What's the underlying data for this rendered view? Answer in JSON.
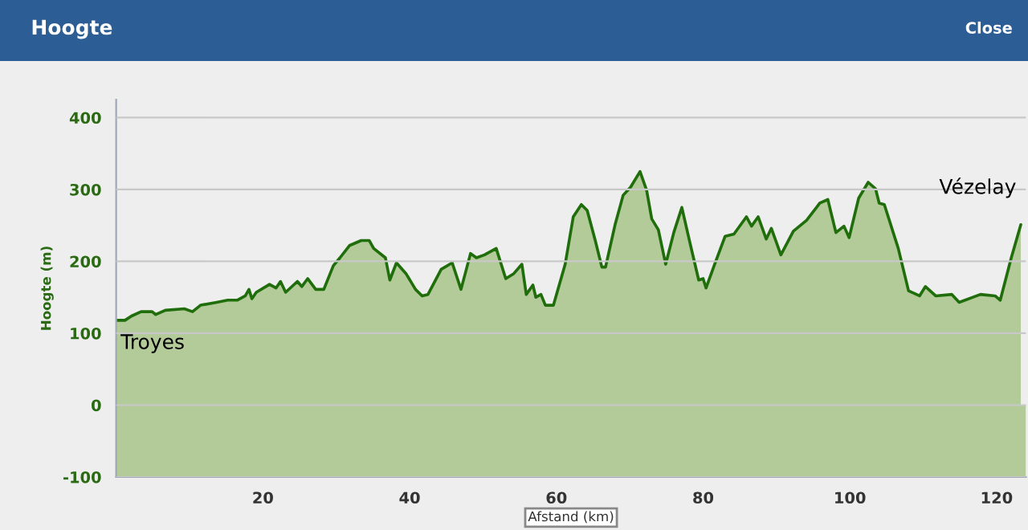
{
  "chart_data": {
    "type": "area",
    "title": "Hoogte",
    "xlabel": "Afstand (km)",
    "ylabel": "Hoogte (m)",
    "annotations": [
      "Close",
      {
        "text": "Troyes",
        "x": 0,
        "y": 118
      },
      {
        "text": "Vézelay",
        "x": 123.3,
        "y": 251
      }
    ],
    "xlim": [
      0,
      124
    ],
    "xticks": [
      {
        "value": 0,
        "label": null
      },
      20,
      40,
      60,
      80,
      100,
      120
    ],
    "bands": [
      {
        "axis": "y",
        "from": -100,
        "to": 0,
        "color": "#b3cb98"
      }
    ],
    "ylim": [
      -100,
      425
    ],
    "yticks": [
      -100,
      0,
      100,
      200,
      300,
      400
    ],
    "grid": "y",
    "legend": false,
    "series": [
      {
        "color": "#1f6e0b",
        "x": [
          0,
          1.2,
          2.1,
          3.4,
          4.9,
          5.4,
          6.7,
          9.3,
          10.4,
          11.5,
          13.7,
          15.2,
          16.5,
          17.6,
          18.1,
          18.5,
          19.1,
          20.9,
          21.8,
          22.4,
          23.1,
          24.7,
          25.3,
          26.1,
          27.2,
          28.3,
          29.6,
          30.5,
          31.8,
          33.4,
          34.5,
          35.1,
          36.7,
          37.3,
          38.2,
          39.5,
          40.8,
          41.7,
          42.5,
          44.3,
          45.8,
          47.0,
          48.3,
          49.1,
          50.2,
          51.8,
          53.1,
          54.2,
          55.3,
          55.9,
          56.8,
          57.2,
          57.9,
          58.5,
          59.6,
          61.2,
          62.3,
          63.4,
          64.2,
          65.3,
          66.2,
          66.7,
          68.0,
          69.1,
          70.1,
          71.4,
          72.3,
          73.0,
          73.9,
          74.9,
          76.0,
          77.1,
          78.2,
          79.4,
          80.0,
          80.4,
          81.5,
          83.0,
          84.2,
          85.9,
          86.6,
          87.5,
          88.6,
          89.3,
          90.6,
          92.3,
          94.1,
          95.9,
          97.0,
          98.1,
          99.2,
          99.9,
          101.2,
          102.5,
          103.5,
          104.0,
          104.7,
          106.6,
          108.0,
          109.5,
          110.3,
          111.7,
          113.9,
          114.9,
          117.8,
          119.8,
          120.5,
          122.0,
          123.3
        ],
        "values": [
          118,
          118,
          124,
          130,
          130,
          126,
          132,
          134,
          130,
          139,
          143,
          146,
          146,
          152,
          161,
          148,
          157,
          168,
          163,
          172,
          157,
          172,
          165,
          176,
          161,
          161,
          194,
          205,
          222,
          229,
          229,
          218,
          205,
          174,
          198,
          183,
          161,
          152,
          154,
          189,
          198,
          161,
          211,
          205,
          209,
          218,
          176,
          183,
          196,
          154,
          167,
          150,
          154,
          139,
          139,
          196,
          262,
          279,
          271,
          229,
          192,
          192,
          251,
          292,
          303,
          325,
          299,
          259,
          244,
          196,
          240,
          275,
          226,
          174,
          176,
          163,
          194,
          235,
          238,
          262,
          249,
          262,
          231,
          246,
          209,
          242,
          257,
          281,
          286,
          240,
          249,
          233,
          288,
          310,
          301,
          281,
          279,
          218,
          159,
          152,
          165,
          152,
          154,
          143,
          154,
          152,
          146,
          205,
          251
        ]
      }
    ]
  }
}
